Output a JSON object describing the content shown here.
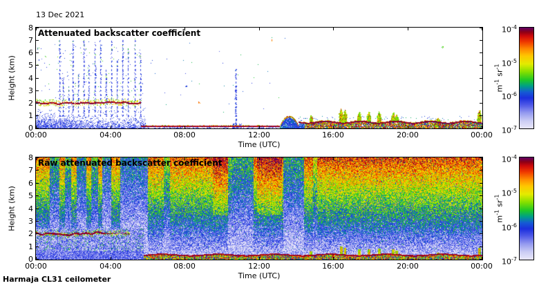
{
  "header": {
    "date": "13 Dec 2021"
  },
  "footer": {
    "instrument": "Harmaja CL31 ceilometer"
  },
  "colors": {
    "frame": "#000000",
    "background": "#ffffff",
    "cloud_line": "#c00010",
    "noise_blue": "#2832dc"
  },
  "panels": [
    {
      "title": "Attenuated backscatter coefficient",
      "ylabel": "Height (km)",
      "xlabel": "Time (UTC)",
      "yticks": [
        "0",
        "1",
        "2",
        "3",
        "4",
        "5",
        "6",
        "7",
        "8"
      ],
      "xticks": [
        "00:00",
        "04:00",
        "08:00",
        "12:00",
        "16:00",
        "20:00",
        "00:00"
      ],
      "colorbar": {
        "units_parts": [
          "m",
          "-1",
          "sr",
          "-1"
        ],
        "ticks": [
          {
            "base": "10",
            "exp": "-4",
            "pos": 0
          },
          {
            "base": "10",
            "exp": "-5",
            "pos": 0.3333
          },
          {
            "base": "10",
            "exp": "-6",
            "pos": 0.6667
          },
          {
            "base": "10",
            "exp": "-7",
            "pos": 1
          }
        ]
      }
    },
    {
      "title": "Raw attenuated backscatter coefficient",
      "ylabel": "Height (km)",
      "xlabel": "Time (UTC)",
      "yticks": [
        "0",
        "1",
        "2",
        "3",
        "4",
        "5",
        "6",
        "7",
        "8"
      ],
      "xticks": [
        "00:00",
        "04:00",
        "08:00",
        "12:00",
        "16:00",
        "20:00",
        "00:00"
      ],
      "colorbar": {
        "units_parts": [
          "m",
          "-1",
          "sr",
          "-1"
        ],
        "ticks": [
          {
            "base": "10",
            "exp": "-4",
            "pos": 0
          },
          {
            "base": "10",
            "exp": "-5",
            "pos": 0.3333
          },
          {
            "base": "10",
            "exp": "-6",
            "pos": 0.6667
          },
          {
            "base": "10",
            "exp": "-7",
            "pos": 1
          }
        ]
      }
    }
  ],
  "chart_data": [
    {
      "type": "heatmap",
      "title": "Attenuated backscatter coefficient",
      "xlabel": "Time (UTC)",
      "ylabel": "Height (km)",
      "x_range_hours": [
        0,
        24
      ],
      "x_tick_labels": [
        "00:00",
        "04:00",
        "08:00",
        "12:00",
        "16:00",
        "20:00",
        "00:00"
      ],
      "y_range_km": [
        0,
        8
      ],
      "color_scale": {
        "type": "log",
        "min": 1e-07,
        "max": 0.0001,
        "units": "m^-1 sr^-1",
        "map": "light-lavender(1e-7) -> blue -> green -> yellow -> orange -> red -> dark-purple(1e-4)"
      },
      "features": [
        {
          "name": "stratus cloud base line",
          "time_h": [
            0,
            5.6
          ],
          "height_km": [
            1.85,
            2.1
          ],
          "value": "~1e-4"
        },
        {
          "name": "virga / precipitation streaks",
          "time_h": [
            1.2,
            5.6
          ],
          "height_km": [
            1,
            7.2
          ],
          "value": "~2e-6"
        },
        {
          "name": "boundary-layer aerosol speckle",
          "time_h": [
            0,
            5.9
          ],
          "height_km": [
            0,
            1.3
          ],
          "value": "~1e-6"
        },
        {
          "name": "thin surface fog/aerosol line",
          "time_h": [
            5.6,
            14.1
          ],
          "height_km": [
            0.1,
            0.3
          ],
          "value": "~1e-4"
        },
        {
          "name": "isolated shower column",
          "time_h": [
            10.6,
            10.9
          ],
          "height_km": [
            0,
            4.7
          ],
          "value": "~2e-6"
        },
        {
          "name": "moist aerosol mound",
          "time_h": [
            13.1,
            14.1
          ],
          "height_km": [
            0,
            0.95
          ],
          "value": "~2e-6"
        },
        {
          "name": "mixed low-level backscatter band with green spikes",
          "time_h": [
            14.1,
            24
          ],
          "height_km": [
            0,
            1.6
          ],
          "value": "1e-6 .. 1e-4"
        }
      ],
      "render": {
        "seed": 20211213,
        "cloud_line": {
          "t0": 0,
          "t1": 0.235
        },
        "virga": [
          [
            0.052,
            7.0
          ],
          [
            0.061,
            4.0
          ],
          [
            0.072,
            3.3
          ],
          [
            0.082,
            6.9
          ],
          [
            0.094,
            4.3
          ],
          [
            0.107,
            7.1
          ],
          [
            0.118,
            5.1
          ],
          [
            0.131,
            6.8
          ],
          [
            0.144,
            7.0
          ],
          [
            0.156,
            4.6
          ],
          [
            0.168,
            6.9
          ],
          [
            0.181,
            5.5
          ],
          [
            0.193,
            7.0
          ],
          [
            0.206,
            6.4
          ],
          [
            0.222,
            7.1
          ],
          [
            0.233,
            5.9
          ]
        ],
        "shower": [
          0.447,
          4.7
        ],
        "mound": [
          0.546,
          0.588,
          0.95
        ],
        "band_start": 0.588,
        "spikes": [
          [
            0.616,
            1.0
          ],
          [
            0.683,
            1.6
          ],
          [
            0.692,
            1.45
          ],
          [
            0.724,
            1.3
          ],
          [
            0.745,
            1.3
          ],
          [
            0.768,
            1.35
          ],
          [
            0.8,
            1.25
          ],
          [
            0.807,
            1.1
          ],
          [
            0.9,
            0.8
          ],
          [
            0.993,
            1.45
          ]
        ],
        "specks": [
          [
            0.365,
            2.05,
            0.8
          ],
          [
            0.528,
            6.95,
            0.78
          ],
          [
            0.91,
            6.4,
            0.5
          ],
          [
            0.335,
            3.3,
            0.3
          ]
        ]
      }
    },
    {
      "type": "heatmap",
      "title": "Raw attenuated backscatter coefficient",
      "xlabel": "Time (UTC)",
      "ylabel": "Height (km)",
      "x_range_hours": [
        0,
        24
      ],
      "x_tick_labels": [
        "00:00",
        "04:00",
        "08:00",
        "12:00",
        "16:00",
        "20:00",
        "00:00"
      ],
      "y_range_km": [
        0,
        8
      ],
      "color_scale": {
        "type": "log",
        "min": 1e-07,
        "max": 0.0001,
        "units": "m^-1 sr^-1"
      },
      "features": [
        {
          "name": "instrument noise gradient",
          "description": "noise grows with height: blue ~1-3 km, green ~4-6 km, yellow/orange/red ~6-8 km"
        },
        {
          "name": "rain-attenuation blue columns",
          "time_h": [
            0.7,
            6.1
          ],
          "height_km": [
            0.5,
            8
          ]
        },
        {
          "name": "attenuation column",
          "time_h": [
            10.3,
            11.7
          ],
          "height_km": [
            0.5,
            8
          ]
        },
        {
          "name": "stratus cloud base line",
          "time_h": [
            0,
            5.0
          ],
          "height_km": [
            1.85,
            2.1
          ],
          "value": "~1e-4"
        },
        {
          "name": "clean white (low signal) zone",
          "time_h": [
            5.5,
            24
          ],
          "height_km": [
            0.3,
            1.6
          ]
        },
        {
          "name": "surface backscatter band with dark-red top line",
          "time_h": [
            5.8,
            24
          ],
          "height_km": [
            0,
            0.6
          ],
          "value": "1e-5 .. 1e-4"
        },
        {
          "name": "high-noise orange patch",
          "time_h": [
            9.5,
            10.5
          ],
          "height_km": [
            4,
            8
          ]
        }
      ],
      "render": {
        "seed": 424242,
        "blue_bands": [
          [
            0.03,
            0.052,
            0.55
          ],
          [
            0.065,
            0.078,
            0.6
          ],
          [
            0.09,
            0.112,
            0.5
          ],
          [
            0.123,
            0.138,
            0.6
          ],
          [
            0.148,
            0.168,
            0.45
          ],
          [
            0.188,
            0.25,
            0.45
          ],
          [
            0.285,
            0.3,
            0.7
          ],
          [
            0.43,
            0.487,
            0.55
          ],
          [
            0.553,
            0.6,
            0.5
          ],
          [
            0.62,
            0.63,
            0.78
          ]
        ],
        "orange_boosts": [
          [
            0.396,
            0.437
          ],
          [
            0.495,
            0.55
          ]
        ],
        "cloud_line_end": 0.21,
        "surface_start": 0.24
      }
    }
  ]
}
